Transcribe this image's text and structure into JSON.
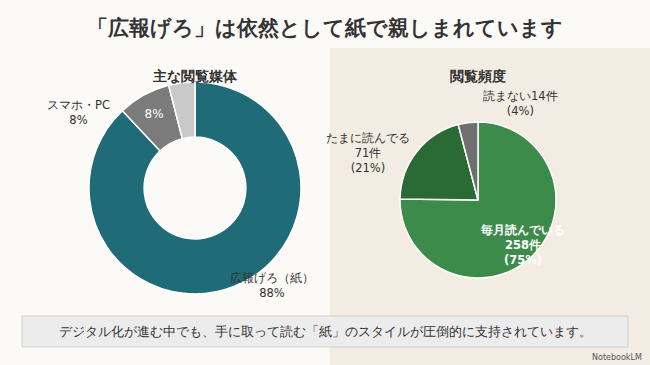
{
  "title": "「広報げろ」は依然として紙で親しまれています",
  "footer": "デジタル化が進む中でも、手に取って読む「紙」のスタイルが圧倒的に支持されています。",
  "logo": "NotebookLM",
  "chart_data": [
    {
      "type": "donut",
      "title": "主な閲覧媒体",
      "categories": [
        "広報げろ（紙）",
        "スマホ・PC",
        null
      ],
      "values": [
        88,
        8,
        4
      ],
      "colors": [
        "#1f6b78",
        "#7b7b7b",
        "#c9c9c9"
      ],
      "value_labels": [
        null,
        "8%",
        null
      ],
      "labels": [
        [
          "広報げろ（紙）",
          "88%"
        ],
        [
          "スマホ・PC",
          "8%"
        ],
        null
      ]
    },
    {
      "type": "pie",
      "title": "閲覧頻度",
      "categories": [
        "毎月読んでいる",
        "たまに読んでる",
        "読まない"
      ],
      "values": [
        258,
        71,
        14
      ],
      "colors": [
        "#3d8b4a",
        "#2a6a35",
        "#6f6f6f"
      ],
      "labels": [
        [
          "毎月読んでいる",
          "258件",
          "(75%)"
        ],
        [
          "たまに読んでる",
          "71件",
          "(21%)"
        ],
        [
          "読まない14件",
          "(4%)"
        ]
      ]
    }
  ]
}
